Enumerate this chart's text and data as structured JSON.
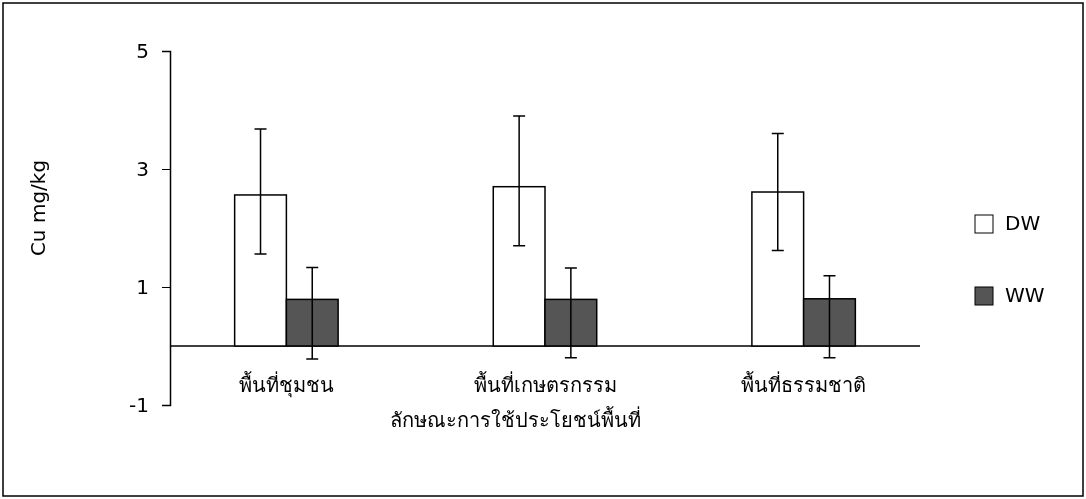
{
  "chart_data": {
    "type": "bar",
    "xlabel": "ลักษณะการใช้ประโยชน์พื้นที่",
    "ylabel": "Cu mg/kg",
    "categories": [
      "พื้นที่ชุมชน",
      "พื้นที่เกษตรกรรม",
      "พื้นที่ธรรมชาติ"
    ],
    "series": [
      {
        "name": "DW",
        "color": "#ffffff",
        "values": [
          2.56,
          2.7,
          2.61
        ],
        "errors": [
          [
            1.56,
            3.68
          ],
          [
            1.7,
            3.9
          ],
          [
            1.62,
            3.6
          ]
        ]
      },
      {
        "name": "WW",
        "color": "#555555",
        "values": [
          0.79,
          0.79,
          0.8
        ],
        "errors": [
          [
            -0.22,
            1.33
          ],
          [
            -0.2,
            1.32
          ],
          [
            -0.2,
            1.19
          ]
        ]
      }
    ],
    "ylim": [
      -1,
      5
    ],
    "yticks": [
      -1,
      1,
      3,
      5
    ],
    "grid": false,
    "legend": "right"
  }
}
